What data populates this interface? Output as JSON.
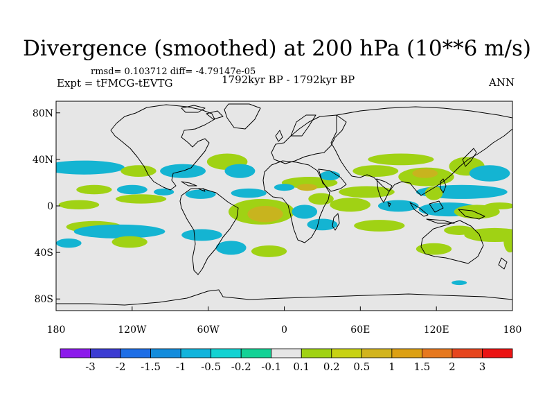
{
  "title": "Divergence (smoothed) at 200 hPa (10**6 m/s)",
  "stats": "rmsd= 0.103712 diff= -4.79147e-05",
  "experiment": "Expt = tFMCG-tEVTG",
  "period": "1792kyr BP - 1792kyr BP",
  "season": "ANN",
  "map": {
    "projection": "cylindrical equidistant",
    "lon_range": [
      -180,
      180
    ],
    "lat_range": [
      -90,
      90
    ],
    "x_ticks": [
      {
        "lon": -180,
        "label": "180"
      },
      {
        "lon": -120,
        "label": "120W"
      },
      {
        "lon": -60,
        "label": "60W"
      },
      {
        "lon": 0,
        "label": "0"
      },
      {
        "lon": 60,
        "label": "60E"
      },
      {
        "lon": 120,
        "label": "120E"
      },
      {
        "lon": 180,
        "label": "180"
      }
    ],
    "y_ticks": [
      {
        "lat": 80,
        "label": "80N"
      },
      {
        "lat": 40,
        "label": "40N"
      },
      {
        "lat": 0,
        "label": "0"
      },
      {
        "lat": -40,
        "label": "40S"
      },
      {
        "lat": -80,
        "label": "80S"
      }
    ],
    "background_color": "#e6e6e6",
    "blobs": [
      {
        "lon": -158,
        "lat": 33,
        "rlon": 32,
        "rlat": 6,
        "level": "neg_low"
      },
      {
        "lon": -115,
        "lat": 30,
        "rlon": 14,
        "rlat": 5,
        "level": "pos_low"
      },
      {
        "lon": -150,
        "lat": 14,
        "rlon": 14,
        "rlat": 4,
        "level": "pos_low"
      },
      {
        "lon": -120,
        "lat": 14,
        "rlon": 12,
        "rlat": 4,
        "level": "neg_low"
      },
      {
        "lon": -80,
        "lat": 30,
        "rlon": 18,
        "rlat": 6,
        "level": "neg_low"
      },
      {
        "lon": -95,
        "lat": 12,
        "rlon": 8,
        "rlat": 3,
        "level": "neg_low"
      },
      {
        "lon": -162,
        "lat": 1,
        "rlon": 16,
        "rlat": 4,
        "level": "pos_low"
      },
      {
        "lon": -113,
        "lat": 6,
        "rlon": 20,
        "rlat": 4,
        "level": "pos_low"
      },
      {
        "lon": -66,
        "lat": 10,
        "rlon": 12,
        "rlat": 4,
        "level": "neg_low"
      },
      {
        "lon": -45,
        "lat": 38,
        "rlon": 16,
        "rlat": 7,
        "level": "pos_low"
      },
      {
        "lon": -35,
        "lat": 30,
        "rlon": 12,
        "rlat": 6,
        "level": "neg_low"
      },
      {
        "lon": -150,
        "lat": -18,
        "rlon": 22,
        "rlat": 5,
        "level": "pos_low"
      },
      {
        "lon": -130,
        "lat": -22,
        "rlon": 36,
        "rlat": 6,
        "level": "neg_low"
      },
      {
        "lon": -122,
        "lat": -31,
        "rlon": 14,
        "rlat": 5,
        "level": "pos_low"
      },
      {
        "lon": -170,
        "lat": -32,
        "rlon": 10,
        "rlat": 4,
        "level": "neg_low"
      },
      {
        "lon": -65,
        "lat": -25,
        "rlon": 16,
        "rlat": 5,
        "level": "neg_low"
      },
      {
        "lon": -42,
        "lat": -36,
        "rlon": 12,
        "rlat": 6,
        "level": "neg_low"
      },
      {
        "lon": -12,
        "lat": -39,
        "rlon": 14,
        "rlat": 5,
        "level": "pos_low"
      },
      {
        "lon": -18,
        "lat": -5,
        "rlon": 26,
        "rlat": 11,
        "level": "pos_low"
      },
      {
        "lon": -15,
        "lat": -7,
        "rlon": 14,
        "rlat": 7,
        "level": "pos_mid"
      },
      {
        "lon": -28,
        "lat": 11,
        "rlon": 14,
        "rlat": 4,
        "level": "neg_low"
      },
      {
        "lon": 20,
        "lat": 20,
        "rlon": 22,
        "rlat": 5,
        "level": "pos_low"
      },
      {
        "lon": 18,
        "lat": 16,
        "rlon": 8,
        "rlat": 3,
        "level": "pos_mid"
      },
      {
        "lon": 36,
        "lat": 26,
        "rlon": 8,
        "rlat": 4,
        "level": "neg_low"
      },
      {
        "lon": 0,
        "lat": 16,
        "rlon": 8,
        "rlat": 3,
        "level": "neg_low"
      },
      {
        "lon": 16,
        "lat": -5,
        "rlon": 10,
        "rlat": 6,
        "level": "neg_low"
      },
      {
        "lon": 29,
        "lat": 6,
        "rlon": 10,
        "rlat": 5,
        "level": "pos_low"
      },
      {
        "lon": 52,
        "lat": 1,
        "rlon": 16,
        "rlat": 6,
        "level": "pos_low"
      },
      {
        "lon": 30,
        "lat": -16,
        "rlon": 12,
        "rlat": 5,
        "level": "neg_low"
      },
      {
        "lon": 75,
        "lat": -17,
        "rlon": 20,
        "rlat": 5,
        "level": "pos_low"
      },
      {
        "lon": 72,
        "lat": 30,
        "rlon": 18,
        "rlat": 5,
        "level": "pos_low"
      },
      {
        "lon": 92,
        "lat": 40,
        "rlon": 26,
        "rlat": 5,
        "level": "pos_low"
      },
      {
        "lon": 65,
        "lat": 12,
        "rlon": 22,
        "rlat": 5,
        "level": "pos_low"
      },
      {
        "lon": 90,
        "lat": 0,
        "rlon": 16,
        "rlat": 5,
        "level": "neg_low"
      },
      {
        "lon": 112,
        "lat": 25,
        "rlon": 22,
        "rlat": 8,
        "level": "pos_low"
      },
      {
        "lon": 111,
        "lat": 28,
        "rlon": 10,
        "rlat": 4,
        "level": "pos_mid"
      },
      {
        "lon": 144,
        "lat": 34,
        "rlon": 14,
        "rlat": 8,
        "level": "pos_low"
      },
      {
        "lon": 140,
        "lat": 12,
        "rlon": 36,
        "rlat": 6,
        "level": "neg_low"
      },
      {
        "lon": 118,
        "lat": 11,
        "rlon": 7,
        "rlat": 6,
        "level": "pos_low"
      },
      {
        "lon": 162,
        "lat": 28,
        "rlon": 16,
        "rlat": 7,
        "level": "neg_low"
      },
      {
        "lon": 130,
        "lat": -3,
        "rlon": 24,
        "rlat": 6,
        "level": "neg_low"
      },
      {
        "lon": 152,
        "lat": -5,
        "rlon": 18,
        "rlat": 6,
        "level": "pos_low"
      },
      {
        "lon": 166,
        "lat": -25,
        "rlon": 24,
        "rlat": 6,
        "level": "pos_low"
      },
      {
        "lon": 138,
        "lat": -21,
        "rlon": 12,
        "rlat": 4,
        "level": "pos_low"
      },
      {
        "lon": 118,
        "lat": -37,
        "rlon": 14,
        "rlat": 5,
        "level": "pos_low"
      },
      {
        "lon": 178,
        "lat": -30,
        "rlon": 5,
        "rlat": 10,
        "level": "pos_low"
      },
      {
        "lon": 170,
        "lat": 0,
        "rlon": 12,
        "rlat": 3,
        "level": "pos_low"
      },
      {
        "lon": 138,
        "lat": -66,
        "rlon": 6,
        "rlat": 2,
        "level": "neg_low"
      }
    ]
  },
  "colorbar": {
    "colors": [
      "#8c1aeb",
      "#3c3cd2",
      "#1e6ee6",
      "#148cdc",
      "#12b4dc",
      "#14d2d2",
      "#14d296",
      "#e6e6e6",
      "#a0d214",
      "#c8d214",
      "#d2b41e",
      "#dca014",
      "#e6781e",
      "#e6461e",
      "#eb1414"
    ],
    "labels": [
      "-3",
      "-2",
      "-1.5",
      "-1",
      "-0.5",
      "-0.2",
      "-0.1",
      "0.1",
      "0.2",
      "0.5",
      "1",
      "1.5",
      "2",
      "3"
    ]
  },
  "levels": {
    "neg_low": "#14b4d2",
    "pos_low": "#a0d214",
    "pos_mid": "#c8b41e"
  }
}
